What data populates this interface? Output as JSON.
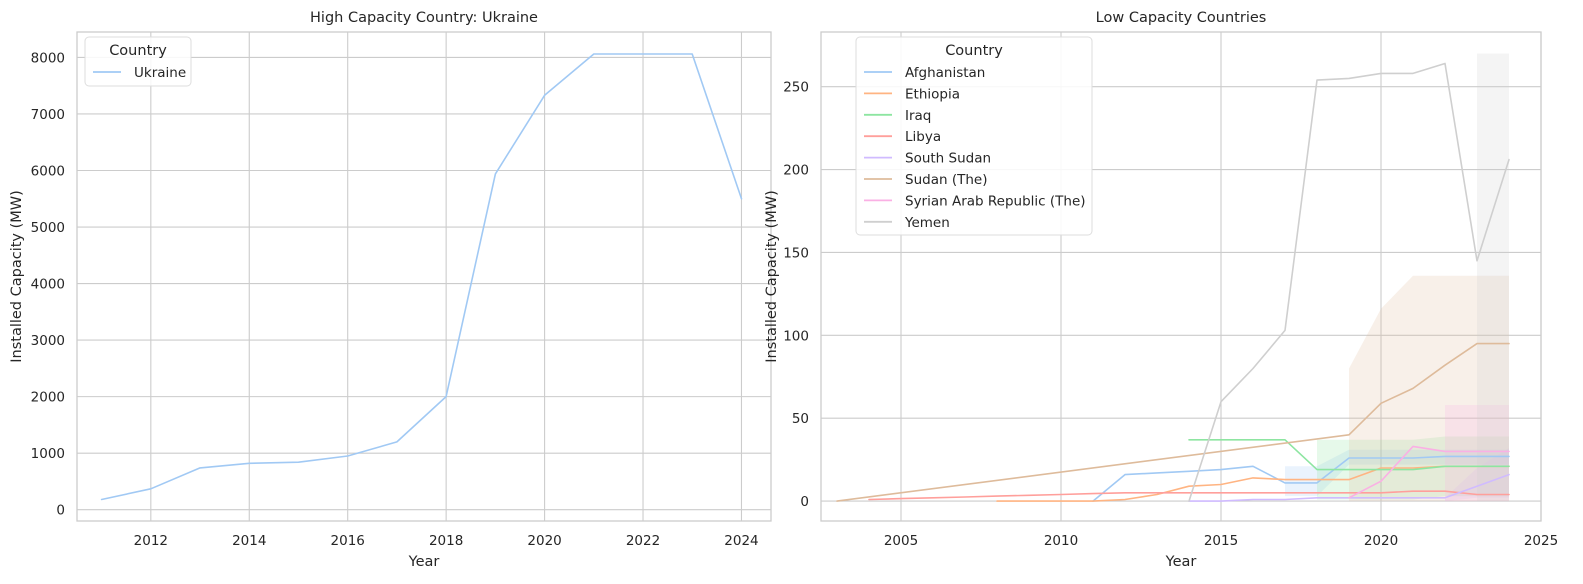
{
  "chart_data": [
    {
      "type": "line",
      "title": "High Capacity Country: Ukraine",
      "xlabel": "Year",
      "ylabel": "Installed Capacity (MW)",
      "xlim": [
        2010.5,
        2024.6
      ],
      "ylim": [
        -200,
        8450
      ],
      "xticks": [
        2012,
        2014,
        2016,
        2018,
        2020,
        2022,
        2024
      ],
      "yticks": [
        0,
        1000,
        2000,
        3000,
        4000,
        5000,
        6000,
        7000,
        8000
      ],
      "grid": true,
      "legend": {
        "title": "Country",
        "placement": "upper left"
      },
      "series": [
        {
          "name": "Ukraine",
          "color": "#a1c9f4",
          "x": [
            2011,
            2012,
            2013,
            2014,
            2015,
            2016,
            2017,
            2018,
            2019,
            2020,
            2021,
            2022,
            2023,
            2024
          ],
          "y": [
            180,
            370,
            740,
            820,
            840,
            950,
            1200,
            2000,
            5940,
            7330,
            8060,
            8060,
            8060,
            5500
          ]
        }
      ]
    },
    {
      "type": "line",
      "title": "Low Capacity Countries",
      "xlabel": "Year",
      "ylabel": "Installed Capacity (MW)",
      "xlim": [
        2002.5,
        2025
      ],
      "ylim": [
        -12,
        283
      ],
      "xticks": [
        2005,
        2010,
        2015,
        2020,
        2025
      ],
      "yticks": [
        0,
        50,
        100,
        150,
        200,
        250
      ],
      "grid": true,
      "legend": {
        "title": "Country",
        "placement": "upper left"
      },
      "series": [
        {
          "name": "Afghanistan",
          "color": "#a1c9f4",
          "x": [
            2011,
            2012,
            2013,
            2014,
            2015,
            2016,
            2017,
            2018,
            2019,
            2020,
            2021,
            2022,
            2023,
            2024
          ],
          "y": [
            0,
            16,
            17,
            18,
            19,
            21,
            11,
            11,
            26,
            26,
            26,
            27,
            27,
            27
          ],
          "band": {
            "x": [
              2017,
              2018,
              2019,
              2020,
              2021,
              2022,
              2023,
              2024
            ],
            "lo": [
              3,
              3,
              22,
              22,
              22,
              22,
              22,
              22
            ],
            "hi": [
              21,
              21,
              31,
              31,
              31,
              31,
              31,
              31
            ]
          }
        },
        {
          "name": "Ethiopia",
          "color": "#ffb482",
          "x": [
            2008,
            2009,
            2010,
            2011,
            2012,
            2013,
            2014,
            2015,
            2016,
            2017,
            2018,
            2019,
            2020,
            2021,
            2022,
            2023,
            2024
          ],
          "y": [
            0,
            0,
            0,
            0,
            1,
            4,
            9,
            10,
            14,
            13,
            13,
            13,
            20,
            20,
            21,
            21,
            21
          ]
        },
        {
          "name": "Iraq",
          "color": "#8de5a1",
          "x": [
            2014,
            2015,
            2016,
            2017,
            2018,
            2019,
            2020,
            2021,
            2022,
            2023,
            2024
          ],
          "y": [
            37,
            37,
            37,
            37,
            19,
            19,
            19,
            19,
            21,
            21,
            21
          ],
          "band": {
            "x": [
              2018,
              2019,
              2020,
              2021,
              2022,
              2023,
              2024
            ],
            "lo": [
              1,
              1,
              1,
              1,
              3,
              3,
              3
            ],
            "hi": [
              37,
              37,
              37,
              37,
              39,
              39,
              39
            ]
          }
        },
        {
          "name": "Libya",
          "color": "#ff9f9b",
          "x": [
            2004,
            2005,
            2006,
            2007,
            2008,
            2009,
            2010,
            2011,
            2012,
            2013,
            2014,
            2015,
            2016,
            2017,
            2018,
            2019,
            2020,
            2021,
            2022,
            2023,
            2024
          ],
          "y": [
            1,
            1.5,
            2,
            2.5,
            3,
            3.5,
            4,
            4.5,
            5,
            5,
            5,
            5,
            5,
            5,
            5,
            5,
            5,
            6,
            6,
            4,
            4
          ]
        },
        {
          "name": "South Sudan",
          "color": "#d0bbff",
          "x": [
            2014,
            2015,
            2016,
            2017,
            2018,
            2019,
            2020,
            2021,
            2022,
            2023,
            2024
          ],
          "y": [
            0,
            0,
            1,
            1,
            2,
            2,
            2,
            2,
            2,
            9,
            16
          ],
          "band": {
            "x": [
              2022,
              2023,
              2024
            ],
            "lo": [
              0,
              2,
              2
            ],
            "hi": [
              2,
              20,
              32
            ]
          }
        },
        {
          "name": "Sudan (The)",
          "color": "#debb9b",
          "x": [
            2003,
            2019,
            2020,
            2021,
            2022,
            2023,
            2024
          ],
          "y": [
            0,
            40,
            59,
            68,
            82,
            95,
            95
          ],
          "band": {
            "x": [
              2019,
              2020,
              2021,
              2022,
              2023,
              2024
            ],
            "lo": [
              0,
              0,
              0,
              0,
              0,
              0
            ],
            "hi": [
              80,
              116,
              136,
              136,
              136,
              136
            ]
          }
        },
        {
          "name": "Syrian Arab Republic (The)",
          "color": "#fab0e4",
          "x": [
            2019,
            2020,
            2021,
            2022,
            2023,
            2024
          ],
          "y": [
            2,
            12,
            33,
            30,
            30,
            30
          ],
          "band": {
            "x": [
              2022,
              2023,
              2024
            ],
            "lo": [
              0,
              0,
              0
            ],
            "hi": [
              58,
              58,
              58
            ]
          }
        },
        {
          "name": "Yemen",
          "color": "#cfcfcf",
          "x": [
            2014,
            2015,
            2016,
            2017,
            2018,
            2019,
            2020,
            2021,
            2022,
            2023,
            2024
          ],
          "y": [
            0,
            60,
            80,
            103,
            254,
            255,
            258,
            258,
            264,
            145,
            206
          ],
          "band": {
            "x": [
              2023,
              2024
            ],
            "lo": [
              0,
              0
            ],
            "hi": [
              270,
              270
            ]
          }
        }
      ]
    }
  ]
}
